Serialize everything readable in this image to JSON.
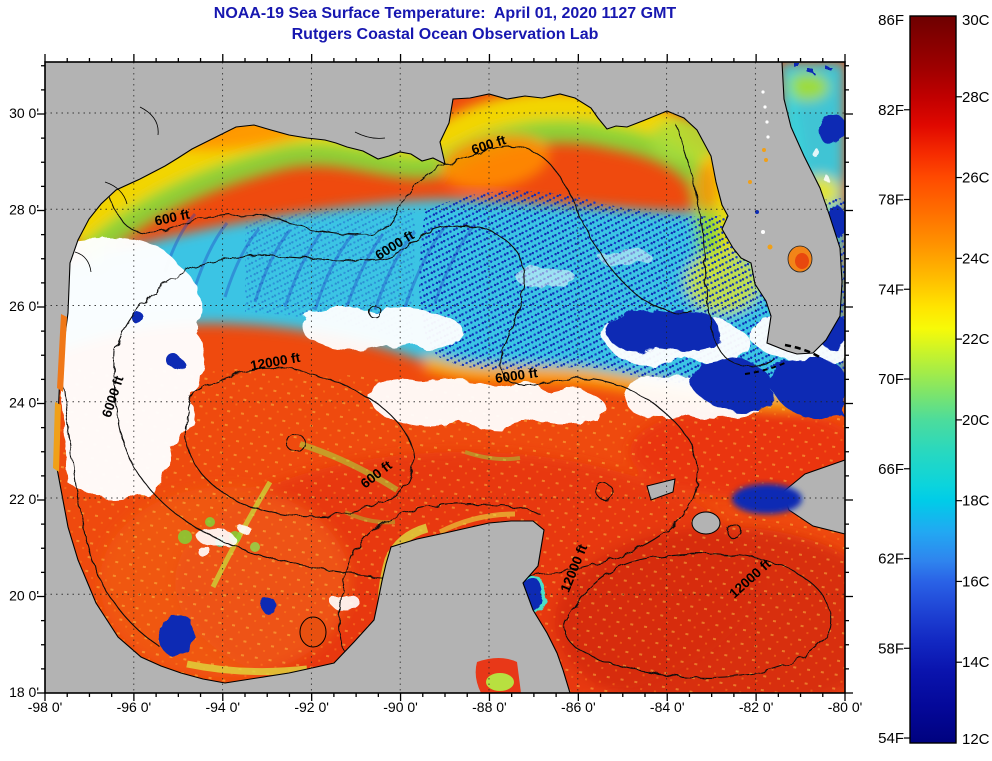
{
  "header": {
    "title": "NOAA-19 Sea Surface Temperature:  April 01, 2020 1127 GMT",
    "subtitle": "Rutgers Coastal Ocean Observation Lab"
  },
  "map": {
    "x_tick_labels": [
      "-98 0'",
      "-96 0'",
      "-94 0'",
      "-92 0'",
      "-90 0'",
      "-88 0'",
      "-86 0'",
      "-84 0'",
      "-82 0'",
      "-80 0'"
    ],
    "y_tick_labels": [
      "30 0'",
      "28 0'",
      "26 0'",
      "24 0'",
      "22 0'",
      "20 0'",
      "18 0'"
    ],
    "contour_labels": [
      "600 ft",
      "600 ft",
      "6000 ft",
      "12000 ft",
      "6000 ft",
      "6000 ft",
      "600 ft",
      "12000 ft",
      "12000 ft"
    ]
  },
  "colorbar": {
    "fahrenheit_labels": [
      "86F",
      "82F",
      "78F",
      "74F",
      "70F",
      "66F",
      "62F",
      "58F",
      "54F"
    ],
    "celsius_labels": [
      "30C",
      "28C",
      "26C",
      "24C",
      "22C",
      "20C",
      "18C",
      "16C",
      "14C",
      "12C"
    ]
  },
  "palette": {
    "title_text": "#1717b0",
    "land": "#b3b3b3",
    "warm_sea_red": "#ef4a0e",
    "shelf_yellow": "#f2dc00",
    "shelf_green": "#86d83c",
    "midshelf_cyan": "#3ac4e4",
    "cloud_white": "#ffffff",
    "cold_cloud_navy": "#0d2cb4",
    "colorbar_top": "#6e0000",
    "colorbar_bottom": "#00027f"
  },
  "chart_data": {
    "type": "heatmap",
    "title": "NOAA-19 Sea Surface Temperature:  April 01, 2020 1127 GMT",
    "subtitle": "Rutgers Coastal Ocean Observation Lab",
    "x_axis": {
      "tick_labels": [
        "-98 0'",
        "-96 0'",
        "-94 0'",
        "-92 0'",
        "-90 0'",
        "-88 0'",
        "-86 0'",
        "-84 0'",
        "-82 0'",
        "-80 0'"
      ],
      "range_deg_longitude": [
        -98,
        -80
      ]
    },
    "y_axis": {
      "tick_labels": [
        "18 0'",
        "20 0'",
        "22 0'",
        "24 0'",
        "26 0'",
        "28 0'",
        "30 0'"
      ],
      "range_deg_latitude": [
        18,
        31
      ]
    },
    "colorbar": {
      "fahrenheit_ticks": [
        86,
        82,
        78,
        74,
        70,
        66,
        62,
        58,
        54
      ],
      "celsius_ticks": [
        30,
        28,
        26,
        24,
        22,
        20,
        18,
        16,
        14,
        12
      ],
      "celsius_range": [
        12,
        30
      ],
      "orientation": "vertical-right",
      "colors_top_to_bottom": [
        "#6e0000",
        "#c00000",
        "#ff4a00",
        "#ff9300",
        "#ffe400",
        "#a4ec48",
        "#4cdc9c",
        "#00cce8",
        "#2f84ee",
        "#1e42d4",
        "#0a14ae",
        "#00027f"
      ]
    },
    "depth_contour_labels_ft": [
      600,
      6000,
      12000
    ],
    "grid": "dotted, every 2 degrees"
  }
}
